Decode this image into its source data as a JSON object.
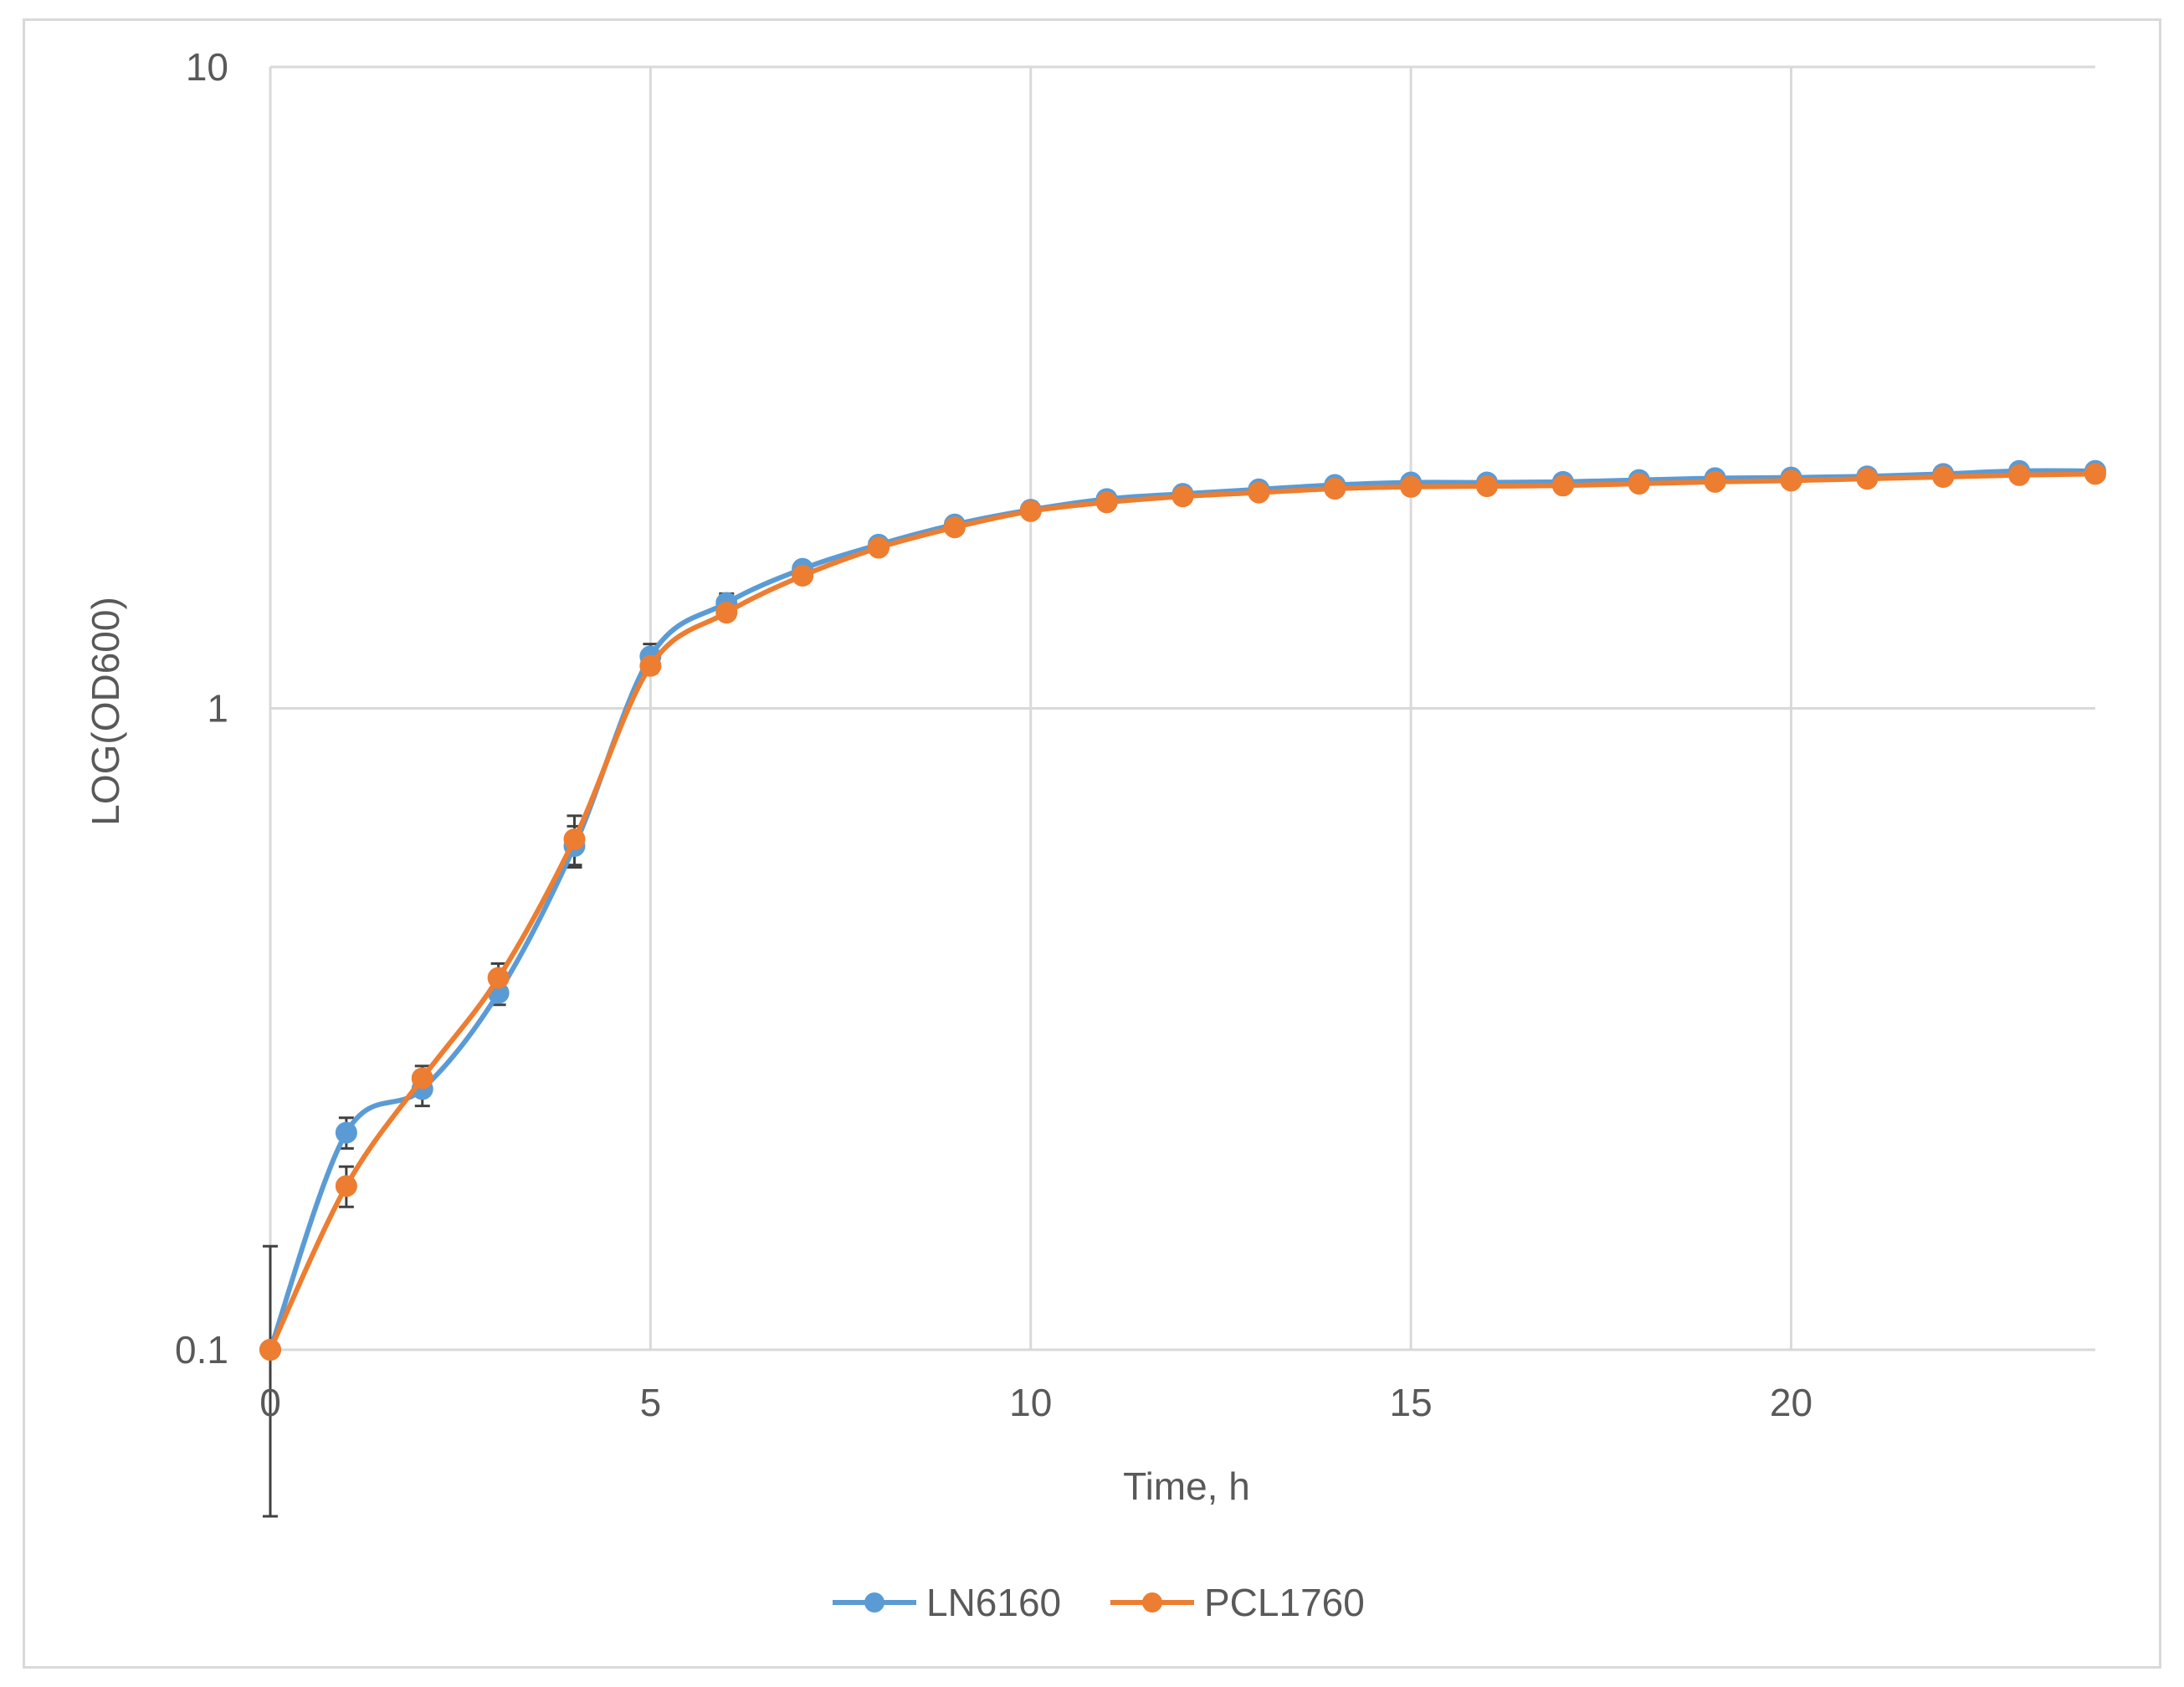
{
  "chart_data": {
    "type": "line",
    "title": "",
    "xlabel": "Time, h",
    "ylabel": "LOG(OD600)",
    "yscale": "log",
    "xlim": [
      0,
      24
    ],
    "ylim": [
      0.1,
      10
    ],
    "x_ticks": [
      0,
      5,
      10,
      15,
      20
    ],
    "x_tick_labels": [
      "0",
      "5",
      "10",
      "15",
      "20"
    ],
    "y_ticks": [
      0.1,
      1,
      10
    ],
    "y_tick_labels": [
      "0.1",
      "1",
      "10"
    ],
    "grid": true,
    "smoothed": true,
    "legend_position": "bottom",
    "x": [
      0,
      1,
      2,
      3,
      4,
      5,
      6,
      7,
      8,
      9,
      10,
      11,
      12,
      13,
      14,
      15,
      16,
      17,
      18,
      19,
      20,
      21,
      22,
      23,
      24
    ],
    "series": [
      {
        "name": "LN6160",
        "color": "#5b9bd5",
        "values": [
          0.1,
          0.218,
          0.255,
          0.36,
          0.61,
          1.205,
          1.46,
          1.65,
          1.8,
          1.935,
          2.04,
          2.12,
          2.16,
          2.195,
          2.23,
          2.25,
          2.25,
          2.255,
          2.27,
          2.285,
          2.29,
          2.3,
          2.32,
          2.345,
          2.345
        ],
        "error": [
          0.0,
          0.012,
          0.015,
          0.015,
          0.045,
          0.055,
          0.05,
          0.04,
          0.035,
          0.03,
          0.03,
          0.025,
          0.025,
          0.025,
          0.02,
          0.02,
          0.02,
          0.02,
          0.02,
          0.02,
          0.02,
          0.02,
          0.02,
          0.02,
          0.02
        ]
      },
      {
        "name": "PCL1760",
        "color": "#ed7d31",
        "values": [
          0.1,
          0.18,
          0.265,
          0.38,
          0.625,
          1.165,
          1.41,
          1.61,
          1.78,
          1.915,
          2.03,
          2.095,
          2.14,
          2.17,
          2.2,
          2.215,
          2.22,
          2.225,
          2.24,
          2.255,
          2.265,
          2.28,
          2.295,
          2.31,
          2.32
        ],
        "error": [
          0.045,
          0.013,
          0.012,
          0.02,
          0.055,
          0.03,
          0.025,
          0.02,
          0.02,
          0.02,
          0.02,
          0.02,
          0.02,
          0.02,
          0.02,
          0.02,
          0.02,
          0.02,
          0.02,
          0.02,
          0.02,
          0.02,
          0.02,
          0.02,
          0.02
        ]
      }
    ]
  }
}
